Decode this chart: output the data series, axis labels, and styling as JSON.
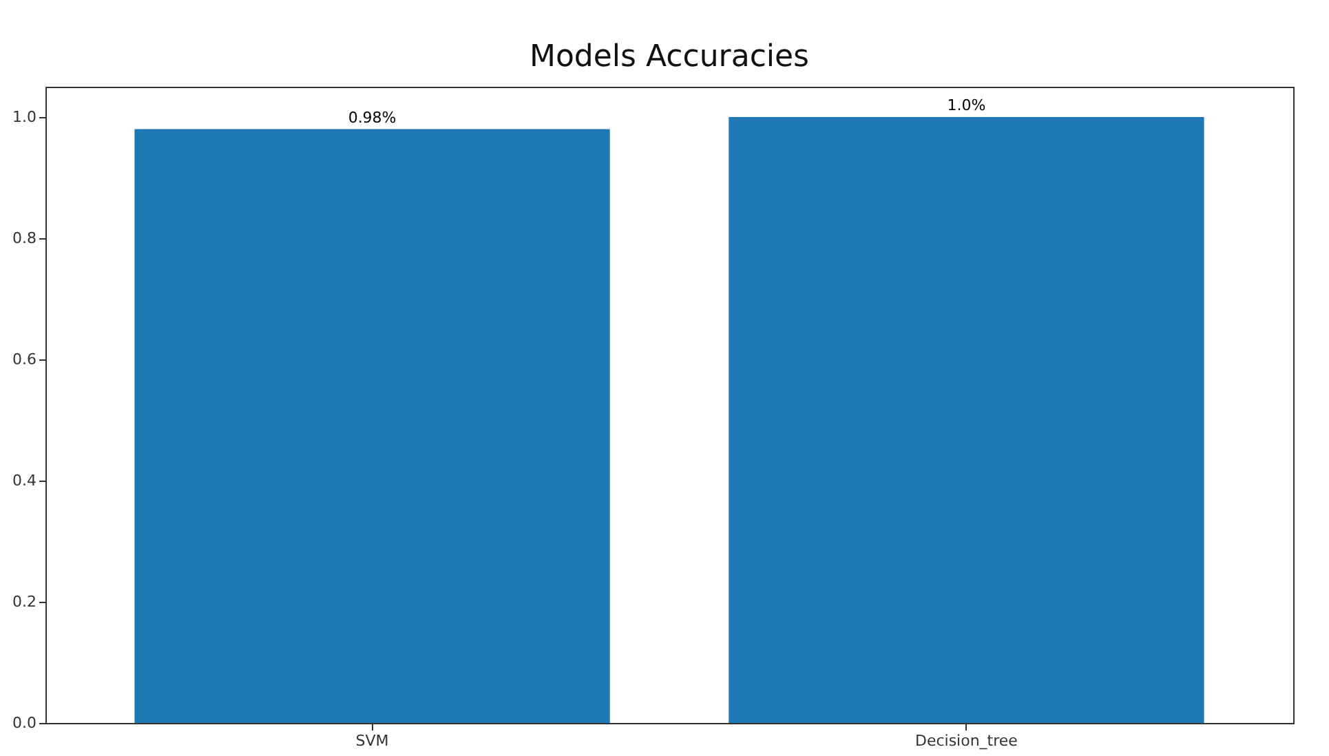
{
  "chart_data": {
    "type": "bar",
    "title": "Models Accuracies",
    "categories": [
      "SVM",
      "Decision_tree"
    ],
    "values": [
      0.98,
      1.0
    ],
    "color": "#1f77b4",
    "value_labels": [
      "0.98%",
      "1.0%"
    ],
    "ylim": [
      0,
      1.05
    ],
    "yticks": [
      {
        "value": 0,
        "label": "0.0"
      },
      0.2,
      0.4,
      0.6,
      0.8,
      {
        "value": 1.0,
        "label": "1.0"
      }
    ],
    "grid": false
  }
}
